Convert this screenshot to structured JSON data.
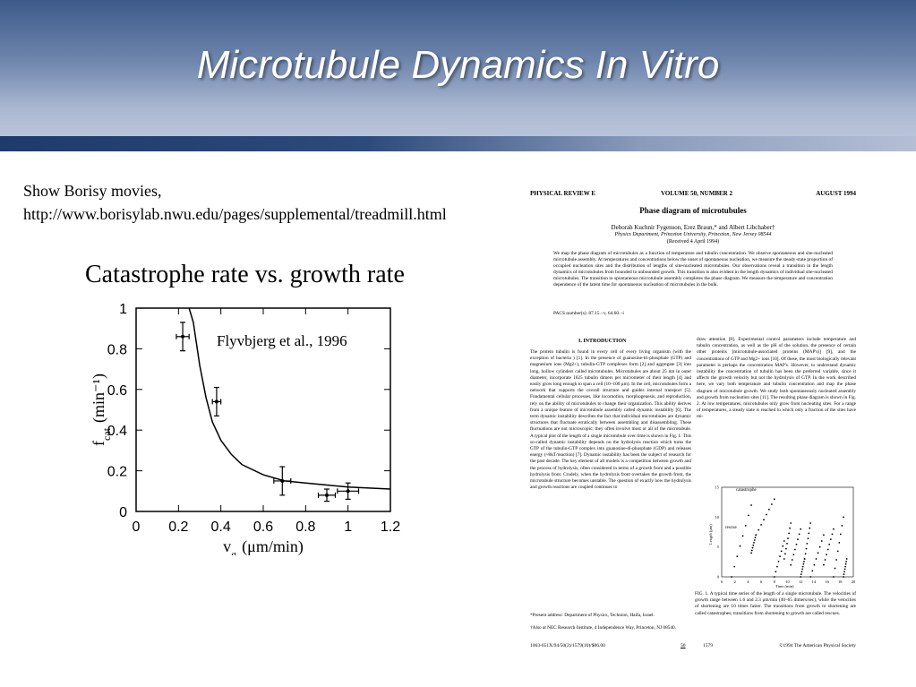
{
  "slide": {
    "title": "Microtubule Dynamics In Vitro",
    "note_line1": "Show Borisy movies,",
    "note_line2": "http://www.borisylab.nwu.edu/pages/supplemental/treadmill.html",
    "subheading": "Catastrophe rate vs. growth rate"
  },
  "chart_data": {
    "type": "scatter",
    "citation": "Flyvbjerg et al., 1996",
    "xlabel": "v_g (μm/min)",
    "ylabel": "f_cat (min⁻¹)",
    "xlim": [
      0,
      1.2
    ],
    "ylim": [
      0,
      1
    ],
    "x_ticks": [
      "0",
      "0.2",
      "0.4",
      "0.6",
      "0.8",
      "1",
      "1.2"
    ],
    "y_ticks": [
      "0",
      "0.2",
      "0.4",
      "0.6",
      "0.8",
      "1"
    ],
    "points": [
      {
        "x": 0.22,
        "y": 0.86,
        "xerr": 0.03,
        "yerr": 0.07
      },
      {
        "x": 0.38,
        "y": 0.54,
        "xerr": 0.02,
        "yerr": 0.07
      },
      {
        "x": 0.69,
        "y": 0.15,
        "xerr": 0.04,
        "yerr": 0.07
      },
      {
        "x": 0.9,
        "y": 0.08,
        "xerr": 0.04,
        "yerr": 0.03
      },
      {
        "x": 1.0,
        "y": 0.1,
        "xerr": 0.05,
        "yerr": 0.04
      }
    ],
    "curve": [
      [
        0.25,
        1.0
      ],
      [
        0.27,
        0.93
      ],
      [
        0.3,
        0.72
      ],
      [
        0.33,
        0.56
      ],
      [
        0.36,
        0.44
      ],
      [
        0.4,
        0.35
      ],
      [
        0.45,
        0.28
      ],
      [
        0.5,
        0.23
      ],
      [
        0.6,
        0.18
      ],
      [
        0.7,
        0.15
      ],
      [
        0.8,
        0.14
      ],
      [
        0.9,
        0.13
      ],
      [
        1.0,
        0.12
      ],
      [
        1.1,
        0.115
      ],
      [
        1.2,
        0.11
      ]
    ]
  },
  "paper": {
    "journal": "PHYSICAL REVIEW E",
    "volume": "VOLUME 50, NUMBER 2",
    "date": "AUGUST 1994",
    "title": "Phase diagram of microtubules",
    "authors": "Deborah Kuchnir Fygenson, Erez Braun,* and Albert Libchaber†",
    "affiliation": "Physics Department, Princeton University, Princeton, New Jersey 08544",
    "received": "(Received 4 April 1994)",
    "abstract": "We map the phase diagram of microtubules as a function of temperature and tubulin concentration. We observe spontaneous and site-nucleated microtubule assembly. At temperatures and concentrations below the onset of spontaneous nucleation, we measure the steady-state proportion of occupied nucleation sites and the distribution of lengths of site-nucleated microtubules. Our observations reveal a transition in the length dynamics of microtubules from bounded to unbounded growth. This transition is also evident in the length dynamics of individual site-nucleated microtubules. The transition to spontaneous microtubule assembly completes the phase diagram. We measure the temperature and concentration dependence of the latent time for spontaneous nucleation of microtubules in the bulk.",
    "pacs": "PACS number(s): 87.15.−v, 64.60.−i",
    "section": "I. INTRODUCTION",
    "col1": "The protein tubulin is found in every cell of every living organism (with the exception of bacteria ) [1]. In the presence of guanosine-tri-phosphate (GTP) and magnesium ions (Mg2+), tubulin-GTP complexes form [2] and aggregate [3] into long, hollow cylinders called microtubules. Microtubules are about 25 nm in outer diameter, incorporate 1625 tubulin dimers per micrometer of their length [4] and easily grow long enough to span a cell (10–100 μm). In the cell, microtubules form a network that supports the overall structure and guides internal transport [5]. Fundamental cellular processes, like locomotion, morphogenesis, and reproduction, rely on the ability of microtubules to change their organization. This ability derives from a unique feature of microtubule assembly called dynamic instability [6]. The term dynamic instability describes the fact that individual microtubules are dynamic structures that fluctuate erratically between assembling and disassembling. These fluctuations are not microscopic; they often involve most or all of the microtubule. A typical plot of the length of a single microtubule over time is shown in Fig. 1. This so-called dynamic instability depends on the hydrolysis reaction which turns the GTP of the tubulin-GTP complex into guanosine-di-phosphate (GDP) and releases energy (≈8kT/reaction) [7]. Dynamic instability has been the subject of research for the past decade. The key element of all models is a competition between growth and the process of hydrolysis, often considered in terms of a growth front and a possible hydrolysis front. Crudely, when the hydrolysis front overtakes the growth front, the microtubule structure becomes unstable. The question of exactly how the hydrolysis and growth reactions are coupled continues to",
    "col2": "draw attention [8]. Experimental control parameters include temperature and tubulin concentration, as well as the pH of the solution, the presence of certain other proteins [microtubule-associated proteins (MAP's)] [9], and the concentrations of GTP and Mg2+ ions [10]. Of these, the most biologically relevant parameter is perhaps the concentration MAP's. However, to understand dynamic instability the concentration of tubulin has been the preferred variable, since it affects the growth velocity but not the hydrolysis of GTP. In the work described here, we vary both temperature and tubulin concentration and map the phase diagram of microtubule growth. We study both spontaneously nucleated assembly and growth from nucleation sites [11]. The resulting phase diagram is shown in Fig. 2. At low temperatures, microtubules only grow from nucleating sites. For a range of temperatures, a steady state is reached in which only a fraction of the sites have mi-",
    "footnote1": "*Present address: Department of Physics, Technion, Haifa, Israel.",
    "footnote2": "†Also at NEC Research Institute, 4 Independence Way, Princeton, NJ 08540.",
    "fig_label_catastrophe": "catastrophe",
    "fig_label_rescue": "rescue",
    "fig_ylabel": "Length (μm)",
    "fig_xlabel": "Time (min)",
    "fig_y_ticks": [
      "0",
      "5",
      "10",
      "15"
    ],
    "fig_x_ticks": [
      "0",
      "2",
      "4",
      "6",
      "8",
      "10",
      "12",
      "14",
      "16",
      "18",
      "20"
    ],
    "fig_caption": "FIG. 1. A typical time series of the length of a single microtubule. The velocities of growth range between 1.6 and 2.3 μm/min (40–65 dimers/sec), while the velocities of shortening are 10 times faster. The transitions from growth to shortening are called catastrophes; transitions from shortening to growth are called rescues.",
    "code": "1063-651X/94/50(2)/1579(10)/$06.00",
    "page_volume": "50",
    "page_number": "1579",
    "copyright": "©1994 The American Physical Society"
  }
}
